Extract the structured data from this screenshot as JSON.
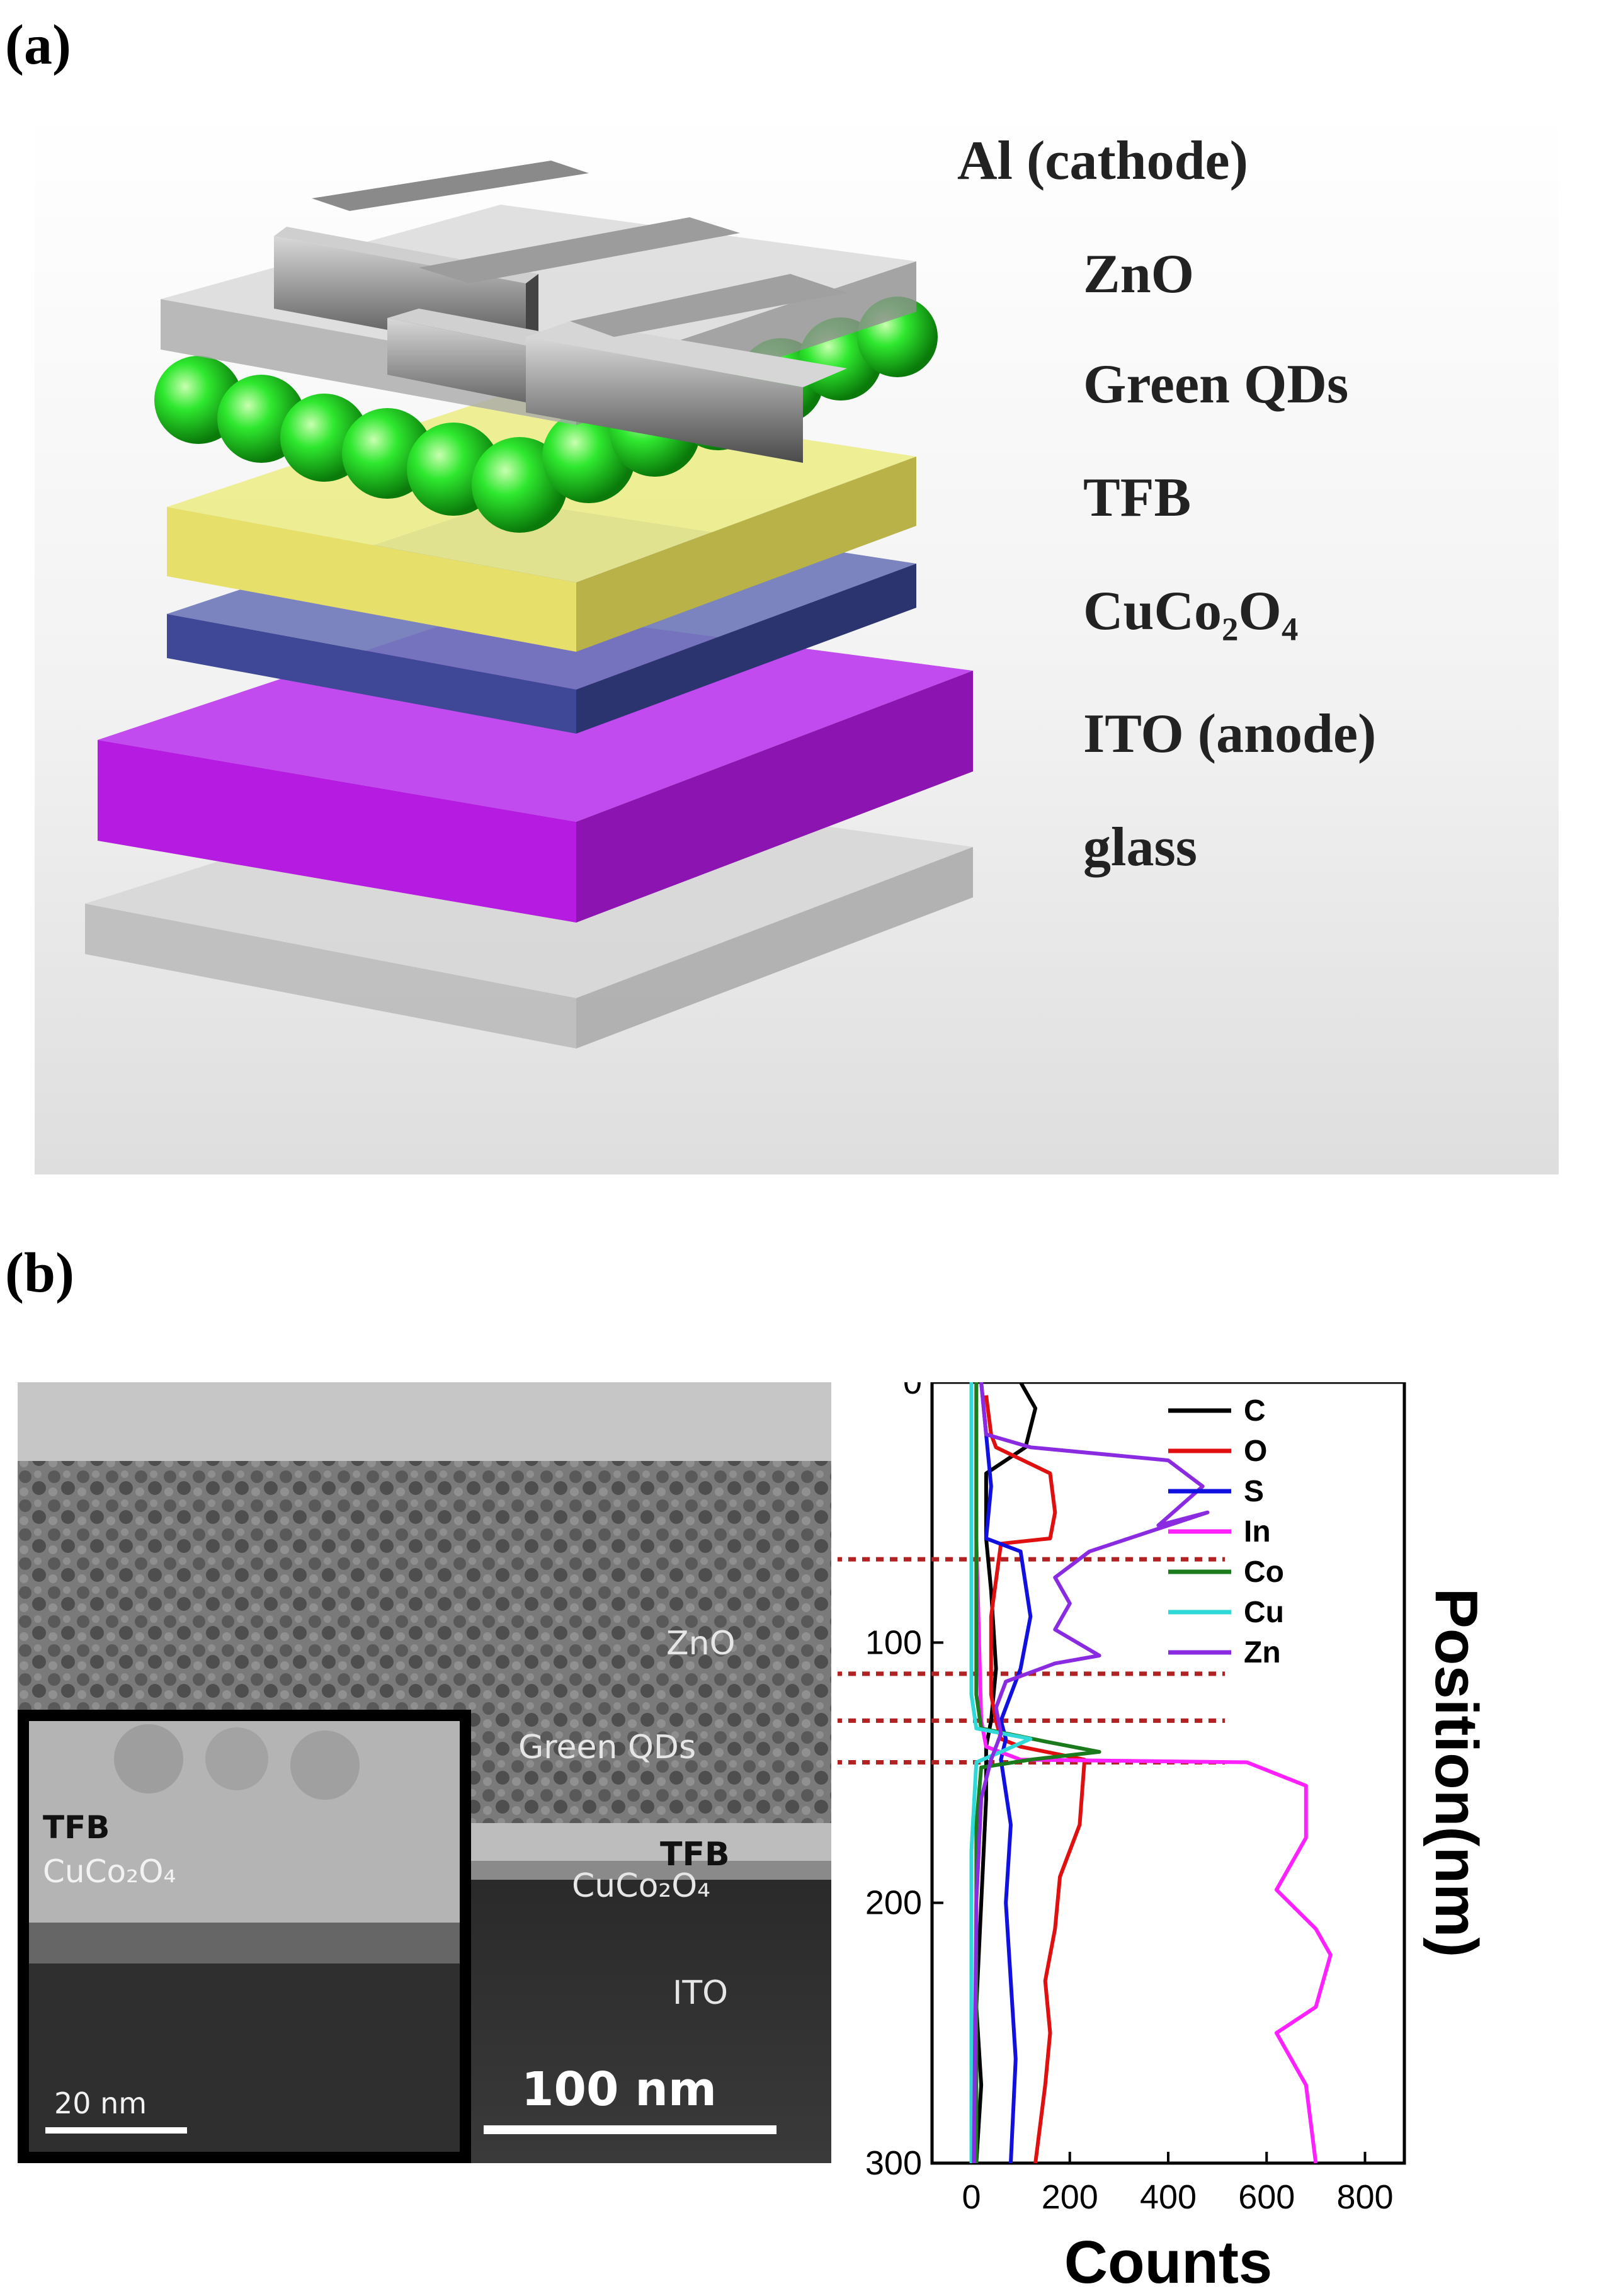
{
  "panel_a": {
    "label": "(a)",
    "layers": [
      "Al (cathode)",
      "ZnO",
      "Green QDs",
      "TFB",
      "CuCo₂O₄",
      "ITO (anode)",
      "glass"
    ]
  },
  "panel_b": {
    "label": "(b)",
    "tem": {
      "labels": {
        "zno": "ZnO",
        "qds": "Green QDs",
        "tfb": "TFB",
        "cuco": "CuCo₂O₄",
        "ito": "ITO"
      },
      "scale_bar": "100 nm",
      "inset": {
        "tfb": "TFB",
        "cuco": "CuCo₂O₄",
        "scale_bar": "20 nm"
      }
    }
  },
  "chart_data": {
    "type": "line",
    "xlabel": "Counts",
    "ylabel": "Position(nm)",
    "xlim": [
      -80,
      880
    ],
    "ylim": [
      300,
      0
    ],
    "xticks": [
      0,
      200,
      400,
      600,
      800
    ],
    "yticks": [
      0,
      100,
      200,
      300
    ],
    "legend_position": "top-right",
    "interface_lines_nm": [
      68,
      112,
      130,
      146
    ],
    "series": [
      {
        "name": "C",
        "color": "#000000",
        "points": [
          [
            100,
            0
          ],
          [
            130,
            10
          ],
          [
            110,
            25
          ],
          [
            30,
            35
          ],
          [
            30,
            60
          ],
          [
            40,
            80
          ],
          [
            50,
            110
          ],
          [
            40,
            130
          ],
          [
            30,
            140
          ],
          [
            30,
            160
          ],
          [
            20,
            200
          ],
          [
            10,
            240
          ],
          [
            20,
            270
          ],
          [
            10,
            300
          ]
        ]
      },
      {
        "name": "O",
        "color": "#e01010",
        "points": [
          [
            30,
            5
          ],
          [
            40,
            20
          ],
          [
            50,
            25
          ],
          [
            160,
            35
          ],
          [
            170,
            50
          ],
          [
            160,
            60
          ],
          [
            60,
            62
          ],
          [
            40,
            90
          ],
          [
            40,
            120
          ],
          [
            50,
            130
          ],
          [
            60,
            137
          ],
          [
            100,
            140
          ],
          [
            230,
            145
          ],
          [
            220,
            170
          ],
          [
            180,
            190
          ],
          [
            170,
            210
          ],
          [
            150,
            230
          ],
          [
            160,
            250
          ],
          [
            150,
            270
          ],
          [
            130,
            300
          ]
        ]
      },
      {
        "name": "S",
        "color": "#1010e0",
        "points": [
          [
            20,
            0
          ],
          [
            30,
            20
          ],
          [
            40,
            40
          ],
          [
            30,
            60
          ],
          [
            100,
            65
          ],
          [
            120,
            90
          ],
          [
            100,
            110
          ],
          [
            60,
            130
          ],
          [
            70,
            137
          ],
          [
            60,
            145
          ],
          [
            80,
            170
          ],
          [
            70,
            200
          ],
          [
            80,
            230
          ],
          [
            90,
            260
          ],
          [
            80,
            300
          ]
        ]
      },
      {
        "name": "In",
        "color": "#ff20ff",
        "points": [
          [
            10,
            0
          ],
          [
            10,
            60
          ],
          [
            20,
            130
          ],
          [
            30,
            140
          ],
          [
            100,
            145
          ],
          [
            560,
            146
          ],
          [
            680,
            155
          ],
          [
            680,
            175
          ],
          [
            620,
            195
          ],
          [
            700,
            210
          ],
          [
            730,
            220
          ],
          [
            700,
            240
          ],
          [
            620,
            250
          ],
          [
            680,
            270
          ],
          [
            700,
            300
          ]
        ]
      },
      {
        "name": "Co",
        "color": "#1b7a1b",
        "points": [
          [
            10,
            0
          ],
          [
            10,
            120
          ],
          [
            20,
            133
          ],
          [
            150,
            138
          ],
          [
            260,
            142
          ],
          [
            120,
            145
          ],
          [
            20,
            148
          ],
          [
            10,
            170
          ],
          [
            10,
            300
          ]
        ]
      },
      {
        "name": "Cu",
        "color": "#30d8d8",
        "points": [
          [
            0,
            0
          ],
          [
            0,
            120
          ],
          [
            10,
            133
          ],
          [
            120,
            137
          ],
          [
            60,
            142
          ],
          [
            10,
            146
          ],
          [
            0,
            180
          ],
          [
            0,
            300
          ]
        ]
      },
      {
        "name": "Zn",
        "color": "#8a2be2",
        "points": [
          [
            20,
            0
          ],
          [
            30,
            20
          ],
          [
            120,
            25
          ],
          [
            400,
            30
          ],
          [
            470,
            40
          ],
          [
            380,
            55
          ],
          [
            480,
            50
          ],
          [
            240,
            65
          ],
          [
            170,
            75
          ],
          [
            200,
            85
          ],
          [
            170,
            95
          ],
          [
            260,
            105
          ],
          [
            170,
            108
          ],
          [
            70,
            115
          ],
          [
            50,
            125
          ],
          [
            60,
            135
          ],
          [
            40,
            145
          ],
          [
            20,
            160
          ],
          [
            10,
            200
          ],
          [
            5,
            300
          ]
        ]
      }
    ]
  }
}
